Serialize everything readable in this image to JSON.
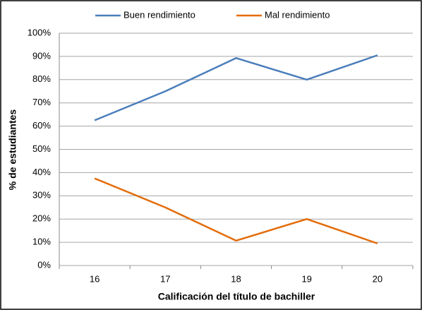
{
  "chart_data": {
    "type": "line",
    "x_label": "Calificación del título de bachiller",
    "y_label": "% de estudiantes",
    "categories": [
      "16",
      "17",
      "18",
      "19",
      "20"
    ],
    "series": [
      {
        "name": "Buen rendimiento",
        "color": "#4a7ebb",
        "values": [
          62.5,
          75,
          89.3,
          80,
          90.5
        ]
      },
      {
        "name": "Mal rendimiento",
        "color": "#e36c09",
        "values": [
          37.5,
          25,
          10.7,
          20,
          9.5
        ]
      }
    ],
    "ylim": [
      0,
      100
    ],
    "yticks": [
      {
        "value": 0,
        "label": "0%"
      },
      {
        "value": 10,
        "label": "10%"
      },
      {
        "value": 20,
        "label": "20%"
      },
      {
        "value": 30,
        "label": "30%"
      },
      {
        "value": 40,
        "label": "40%"
      },
      {
        "value": 50,
        "label": "50%"
      },
      {
        "value": 60,
        "label": "60%"
      },
      {
        "value": 70,
        "label": "70%"
      },
      {
        "value": 80,
        "label": "80%"
      },
      {
        "value": 90,
        "label": "90%"
      },
      {
        "value": 100,
        "label": "100%"
      }
    ],
    "grid": true,
    "legend": "top"
  }
}
